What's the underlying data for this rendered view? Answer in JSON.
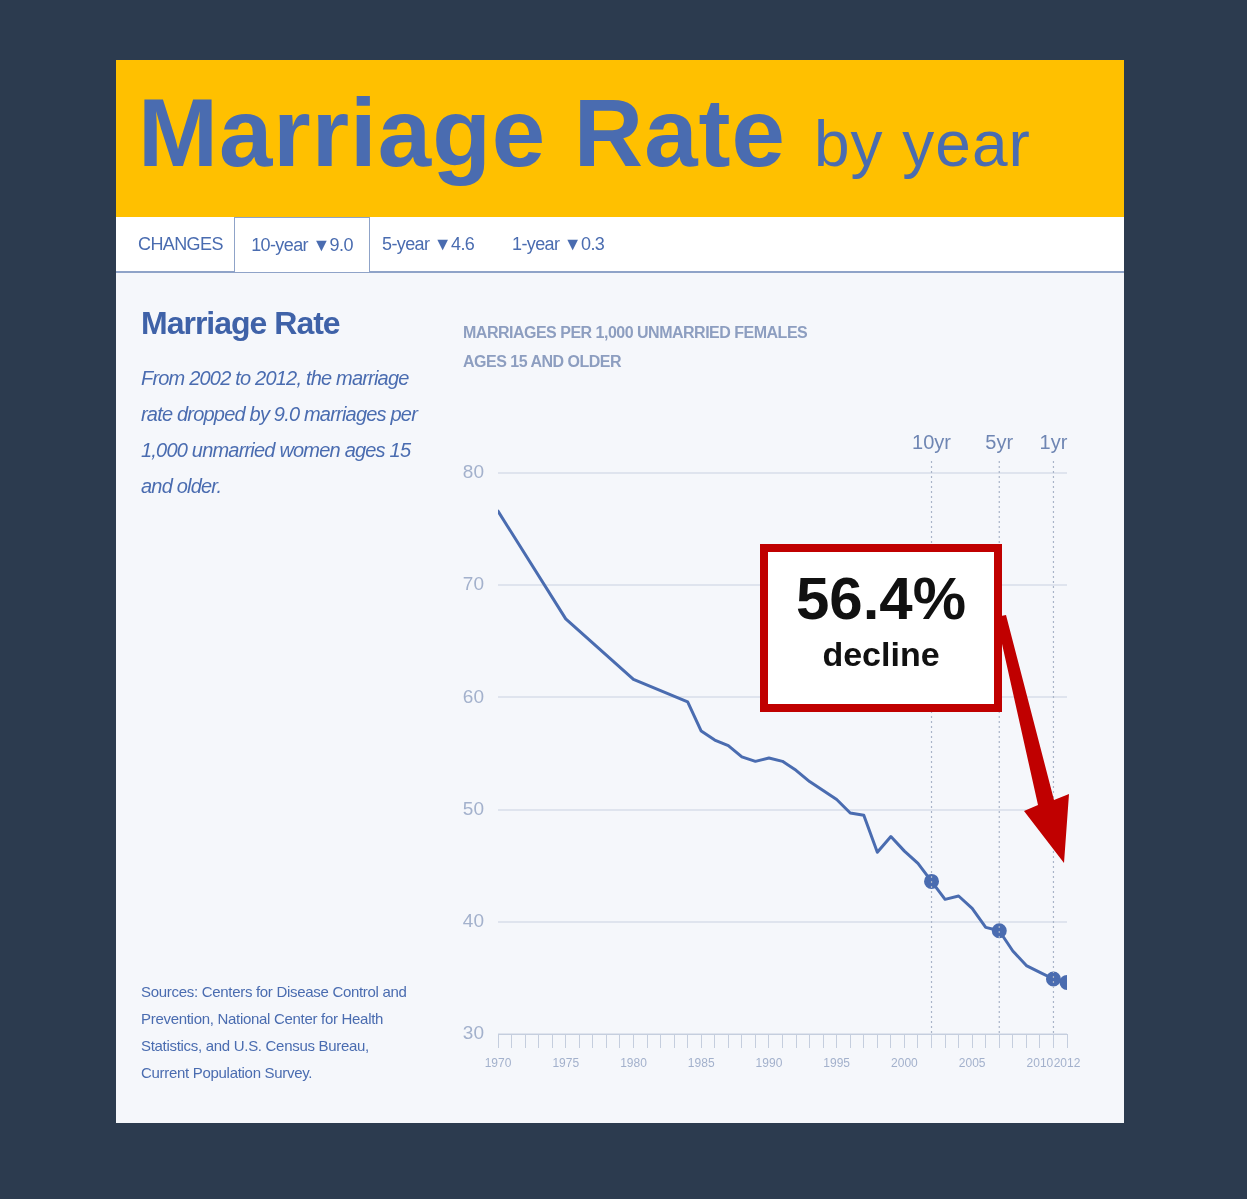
{
  "chart_data": {
    "type": "line",
    "title": "Marriage Rate",
    "subtitle": "by year",
    "annotations": [
      "CHANGES",
      "10-year ▼9.0",
      "5-year ▼4.6",
      "1-year ▼0.3",
      "Marriage Rate",
      "From 2002 to 2012, the marriage rate dropped by 9.0 marriages per 1,000 unmarried women ages 15 and older.",
      "Sources: Centers for Disease Control and Prevention, National Center for Health Statistics, and U.S. Census Bureau, Current Population Survey.",
      "56.4%",
      "decline",
      "MARRIAGES PER 1,000 UNMARRIED FEMALES AGES 15 AND OLDER"
    ],
    "series": [
      {
        "color": "#4a6cb0",
        "marker": "none",
        "x": [
          1970,
          1975,
          1980,
          1984,
          1985,
          1986,
          1987,
          1988,
          1989,
          1990,
          1991,
          1992,
          1993,
          1994,
          1995,
          1996,
          1997,
          1998,
          1999,
          2000,
          2001,
          2002,
          2003,
          2004,
          2005,
          2006,
          2007,
          2008,
          2009,
          2010,
          2011,
          2012
        ],
        "values": [
          76.6,
          67.0,
          61.6,
          59.6,
          57.0,
          56.2,
          55.7,
          54.7,
          54.3,
          54.6,
          54.3,
          53.5,
          52.5,
          51.7,
          50.9,
          49.7,
          49.5,
          46.2,
          47.6,
          46.3,
          45.2,
          43.6,
          42.0,
          42.3,
          41.2,
          39.5,
          39.2,
          37.4,
          36.1,
          35.5,
          34.9,
          34.6
        ]
      },
      {
        "type": "scatter",
        "color": "#4a6cb0",
        "marker": "circle",
        "x": [
          2002,
          2007,
          2011,
          2012
        ],
        "values": [
          43.6,
          39.2,
          34.9,
          34.6
        ]
      }
    ],
    "xlim": [
      1970,
      2012
    ],
    "xticks": [
      1970,
      {
        "value": 1971,
        "label": null
      },
      {
        "value": 1972,
        "label": null
      },
      {
        "value": 1973,
        "label": null
      },
      {
        "value": 1974,
        "label": null
      },
      1975,
      {
        "value": 1976,
        "label": null
      },
      {
        "value": 1977,
        "label": null
      },
      {
        "value": 1978,
        "label": null
      },
      {
        "value": 1979,
        "label": null
      },
      1980,
      {
        "value": 1981,
        "label": null
      },
      {
        "value": 1982,
        "label": null
      },
      {
        "value": 1983,
        "label": null
      },
      {
        "value": 1984,
        "label": null
      },
      1985,
      {
        "value": 1986,
        "label": null
      },
      {
        "value": 1987,
        "label": null
      },
      {
        "value": 1988,
        "label": null
      },
      {
        "value": 1989,
        "label": null
      },
      1990,
      {
        "value": 1991,
        "label": null
      },
      {
        "value": 1992,
        "label": null
      },
      {
        "value": 1993,
        "label": null
      },
      {
        "value": 1994,
        "label": null
      },
      1995,
      {
        "value": 1996,
        "label": null
      },
      {
        "value": 1997,
        "label": null
      },
      {
        "value": 1998,
        "label": null
      },
      {
        "value": 1999,
        "label": null
      },
      2000,
      {
        "value": 2001,
        "label": null
      },
      {
        "value": 2002,
        "label": null
      },
      {
        "value": 2003,
        "label": null
      },
      {
        "value": 2004,
        "label": null
      },
      2005,
      {
        "value": 2006,
        "label": null
      },
      {
        "value": 2007,
        "label": null
      },
      {
        "value": 2008,
        "label": null
      },
      {
        "value": 2009,
        "label": null
      },
      2010,
      {
        "value": 2011,
        "label": null
      },
      2012
    ],
    "ylim": [
      30,
      80
    ],
    "yticks": [
      30,
      40,
      50,
      60,
      70,
      80
    ],
    "ref_lines": [
      {
        "axis": "x",
        "value": 2002,
        "label": "10yr",
        "line_style": "dotted",
        "color": "#a9b4c8"
      },
      {
        "axis": "x",
        "value": 2007,
        "label": "5yr",
        "line_style": "dotted",
        "color": "#a9b4c8"
      },
      {
        "axis": "x",
        "value": 2011,
        "label": "1yr",
        "line_style": "dotted",
        "color": "#a9b4c8"
      }
    ],
    "grid": "y",
    "legend": false,
    "line_style": "solid"
  }
}
